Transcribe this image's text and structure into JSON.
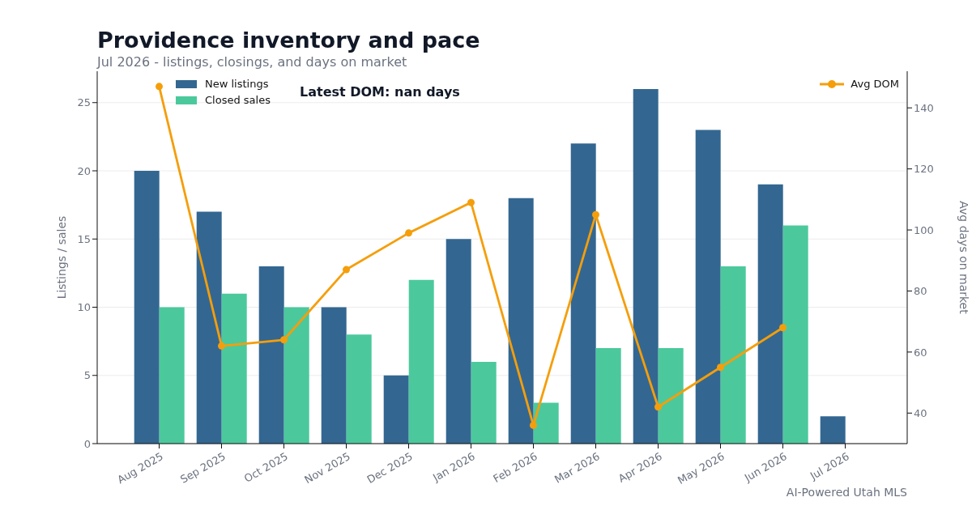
{
  "chart_data": {
    "type": "bar",
    "title": "Providence inventory and pace",
    "subtitle": "Jul 2026 - listings, closings, and days on market",
    "ylabel": "Listings / sales",
    "y2label": "Avg days on market",
    "categories": [
      "Aug 2025",
      "Sep 2025",
      "Oct 2025",
      "Nov 2025",
      "Dec 2025",
      "Jan 2026",
      "Feb 2026",
      "Mar 2026",
      "Apr 2026",
      "May 2026",
      "Jun 2026",
      "Jul 2026"
    ],
    "series": [
      {
        "name": "New listings",
        "color": "#336791",
        "values": [
          20,
          17,
          13,
          10,
          5,
          15,
          18,
          22,
          26,
          23,
          19,
          2
        ]
      },
      {
        "name": "Closed sales",
        "color": "#4bc99d",
        "values": [
          10,
          11,
          10,
          8,
          12,
          6,
          3,
          7,
          7,
          13,
          16,
          null
        ]
      },
      {
        "name": "Avg DOM",
        "type": "line",
        "axis": "y2",
        "color": "#f59e0b",
        "values": [
          147,
          62,
          64,
          87,
          99,
          109,
          36,
          105,
          42,
          55,
          68,
          null
        ]
      }
    ],
    "ylim": [
      0,
      27.3
    ],
    "yticks": [
      0,
      5,
      10,
      15,
      20,
      25
    ],
    "y2lim": [
      30,
      152
    ],
    "y2ticks": [
      40,
      60,
      80,
      100,
      120,
      140
    ],
    "grid": "y",
    "legend": "top",
    "marker": "circle",
    "line_style": "solid",
    "annotations": [
      "Latest DOM: nan days",
      "AI-Powered Utah MLS"
    ]
  }
}
